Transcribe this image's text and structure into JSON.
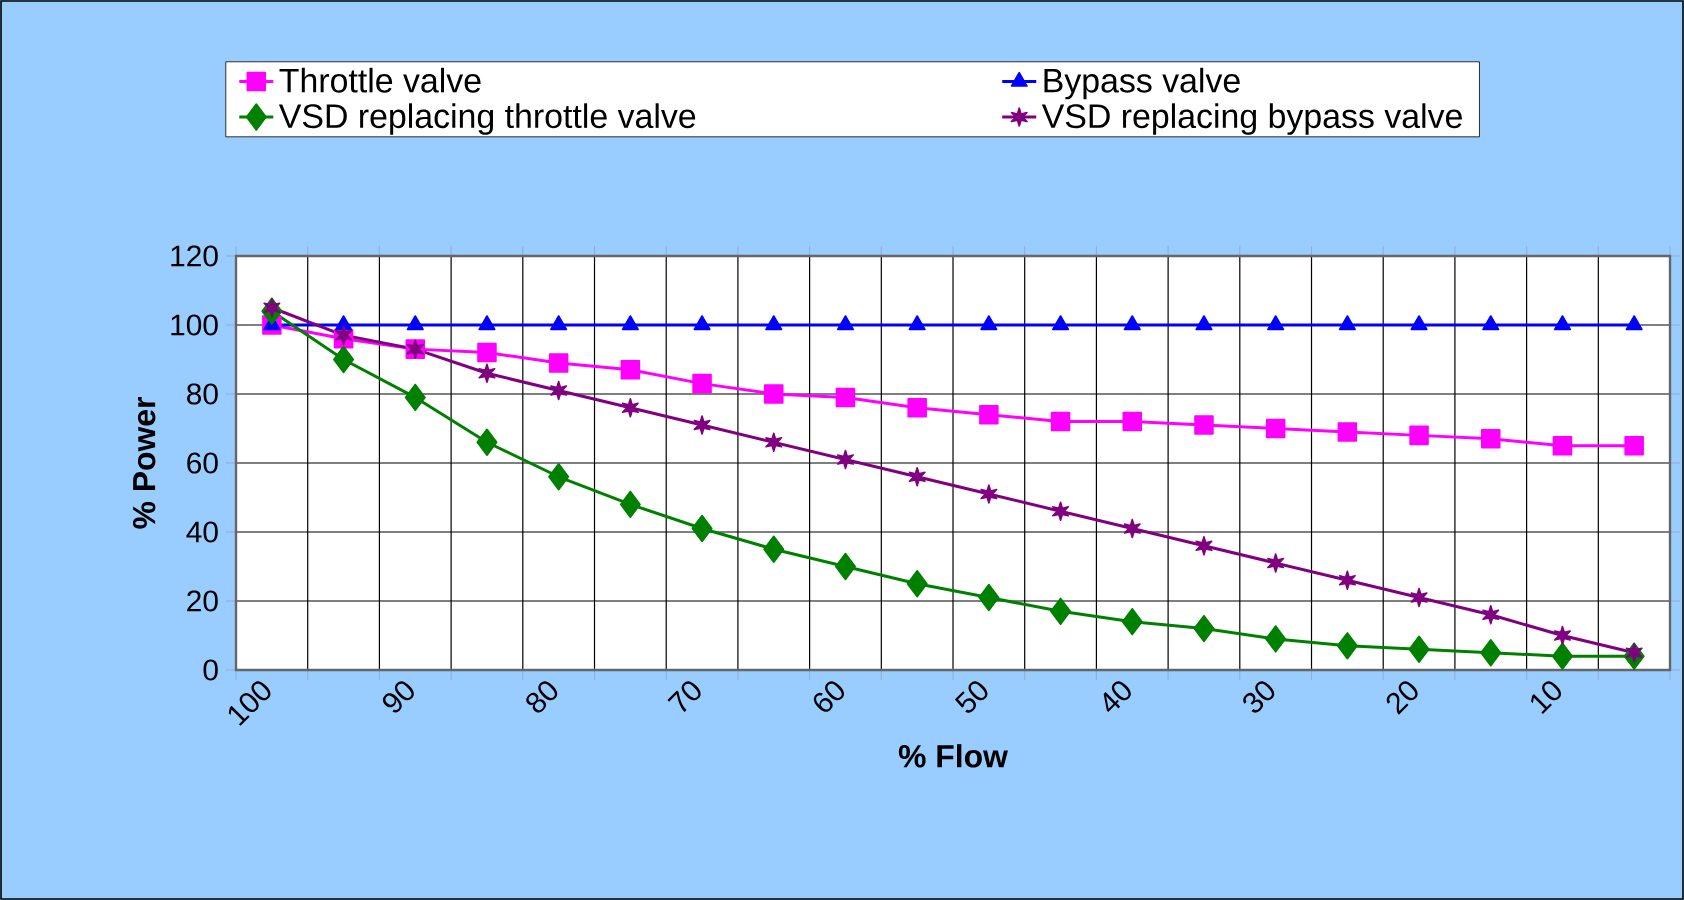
{
  "chart_data": {
    "type": "line",
    "xlabel": "% Flow",
    "ylabel": "% Power",
    "categories": [
      "100",
      null,
      "90",
      null,
      "80",
      null,
      "70",
      null,
      "60",
      null,
      "50",
      null,
      "40",
      null,
      "30",
      null,
      "20",
      null,
      "10",
      null
    ],
    "ylim": [
      0,
      120
    ],
    "yticks": [
      0,
      20,
      40,
      60,
      80,
      100,
      120
    ],
    "grid": true,
    "legend": "top",
    "series": [
      {
        "name": "Throttle valve",
        "color": "#ff00ff",
        "marker": "square",
        "values": [
          100,
          96,
          93,
          92,
          89,
          87,
          83,
          80,
          79,
          76,
          74,
          72,
          72,
          71,
          70,
          69,
          68,
          67,
          65,
          65
        ]
      },
      {
        "name": "Bypass valve",
        "color": "#0000ff",
        "marker": "triangle",
        "values": [
          100,
          100,
          100,
          100,
          100,
          100,
          100,
          100,
          100,
          100,
          100,
          100,
          100,
          100,
          100,
          100,
          100,
          100,
          100,
          100
        ]
      },
      {
        "name": "VSD replacing throttle valve",
        "color": "#008000",
        "marker": "diamond",
        "values": [
          104,
          90,
          79,
          66,
          56,
          48,
          41,
          35,
          30,
          25,
          21,
          17,
          14,
          12,
          9,
          7,
          6,
          5,
          4,
          4
        ]
      },
      {
        "name": "VSD replacing bypass valve",
        "color": "#800080",
        "marker": "cross",
        "values": [
          105,
          97,
          93,
          86,
          81,
          76,
          71,
          66,
          61,
          56,
          51,
          46,
          41,
          36,
          31,
          26,
          21,
          16,
          10,
          5
        ]
      }
    ]
  }
}
